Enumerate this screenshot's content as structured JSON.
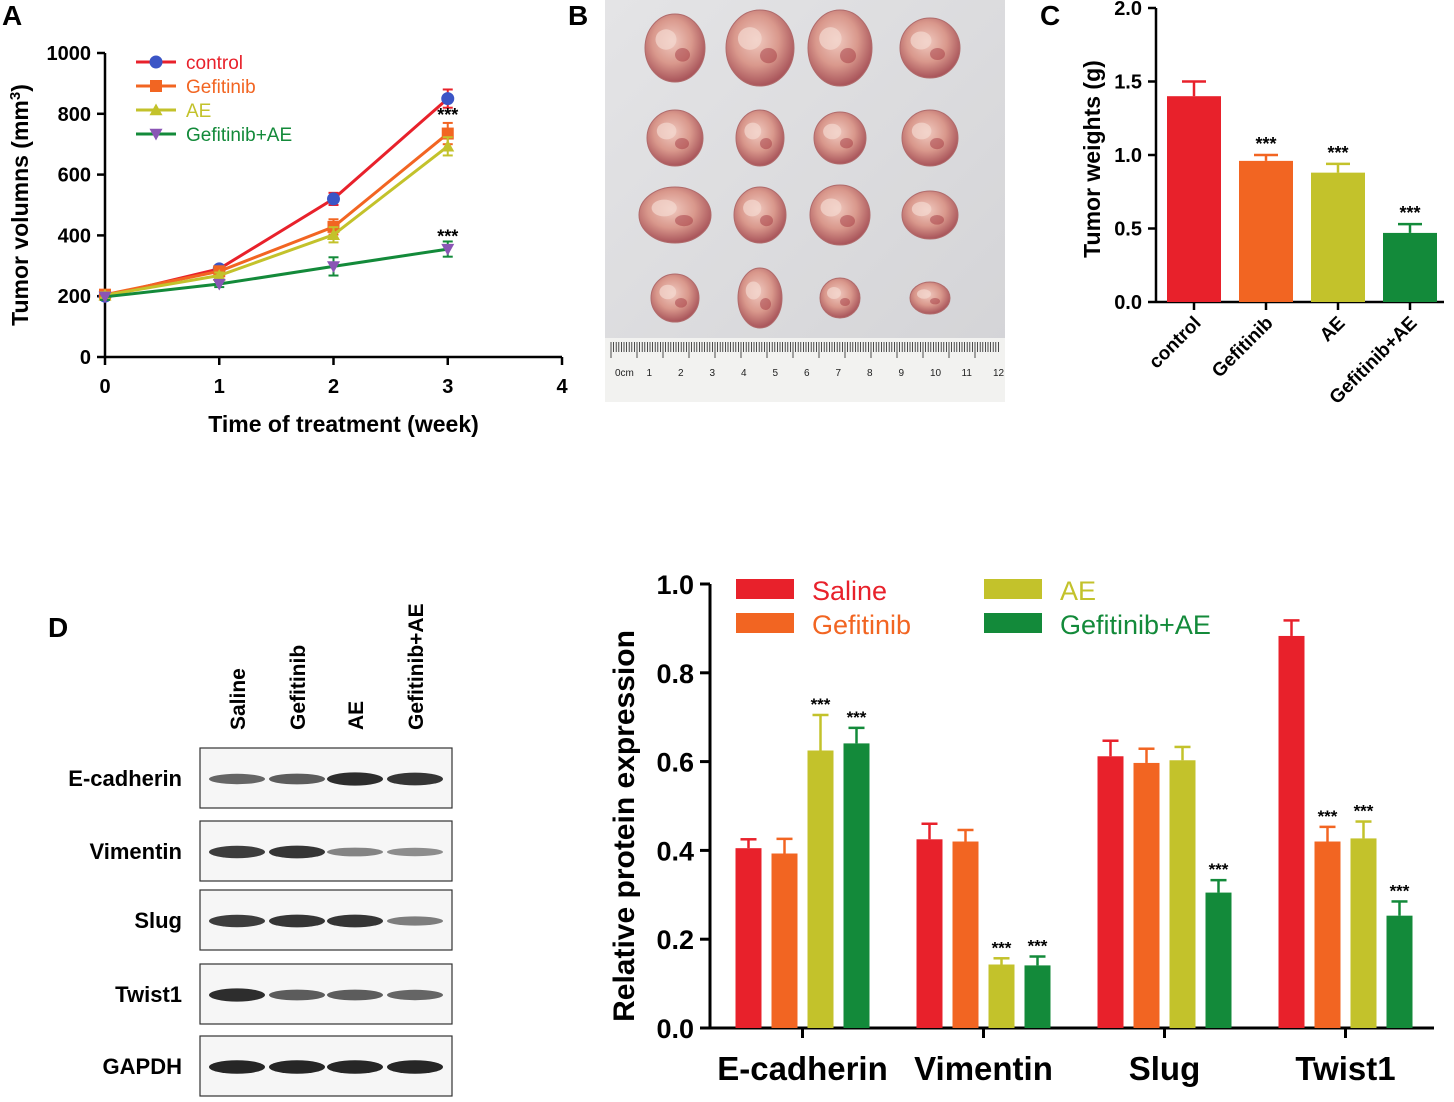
{
  "panels": {
    "a": "A",
    "b": "B",
    "c": "C",
    "d": "D"
  },
  "colors": {
    "red": "#e8212b",
    "orange": "#f26522",
    "olive": "#c3c22b",
    "green": "#138a3a",
    "blue": "#3b55c6",
    "purple": "#8a55b5"
  },
  "photo": {
    "ruler_labels": [
      "0cm",
      "1",
      "2",
      "3",
      "4",
      "5",
      "6",
      "7",
      "8",
      "9",
      "10",
      "11",
      "12"
    ]
  },
  "blot": {
    "lanes": [
      "Saline",
      "Gefitinib",
      "AE",
      "Gefitinib+AE"
    ],
    "proteins": [
      "E-cadherin",
      "Vimentin",
      "Slug",
      "Twist1",
      "GAPDH"
    ]
  },
  "chart_data": [
    {
      "id": "A",
      "type": "line",
      "title": "",
      "xlabel": "Time of treatment (week)",
      "ylabel_main": "Tumor volumns (mm",
      "ylabel_sup": "3",
      "ylabel_close": ")",
      "xlim": [
        0,
        4
      ],
      "ylim": [
        0,
        1000
      ],
      "xticks": [
        "0",
        "1",
        "2",
        "3",
        "4"
      ],
      "yticks": [
        "0",
        "200",
        "400",
        "600",
        "800",
        "1000"
      ],
      "x": [
        0,
        1,
        2,
        3
      ],
      "series": [
        {
          "name": "control",
          "values": [
            200,
            290,
            520,
            850
          ],
          "errors": [
            10,
            10,
            20,
            30
          ],
          "marker": "circle"
        },
        {
          "name": "Gefitinib",
          "values": [
            205,
            282,
            428,
            735
          ],
          "errors": [
            10,
            10,
            25,
            35
          ],
          "marker": "square"
        },
        {
          "name": "AE",
          "values": [
            203,
            268,
            402,
            693
          ],
          "errors": [
            10,
            10,
            25,
            30
          ],
          "marker": "triangle-up"
        },
        {
          "name": "Gefitinib+AE",
          "values": [
            198,
            240,
            298,
            355
          ],
          "errors": [
            10,
            10,
            30,
            25
          ],
          "marker": "triangle-down"
        }
      ],
      "annotations": [
        {
          "text": "***",
          "x": 3,
          "y": 790
        },
        {
          "text": "***",
          "x": 3,
          "y": 390
        }
      ],
      "legend": "top-left"
    },
    {
      "id": "C",
      "type": "bar",
      "title": "",
      "ylabel": "Tumor weights (g)",
      "ylim": [
        0,
        2.0
      ],
      "yticks": [
        "0.0",
        "0.5",
        "1.0",
        "1.5",
        "2.0"
      ],
      "categories": [
        "control",
        "Gefitinib",
        "AE",
        "Gefitinib+AE"
      ],
      "values": [
        1.4,
        0.96,
        0.88,
        0.47
      ],
      "errors": [
        0.1,
        0.04,
        0.06,
        0.06
      ],
      "significance": [
        "",
        "***",
        "***",
        "***"
      ]
    },
    {
      "id": "D",
      "type": "bar",
      "title": "",
      "ylabel": "Relative protein expression",
      "ylim": [
        0,
        1.0
      ],
      "yticks": [
        "0.0",
        "0.2",
        "0.4",
        "0.6",
        "0.8",
        "1.0"
      ],
      "categories": [
        "E-cadherin",
        "Vimentin",
        "Slug",
        "Twist1"
      ],
      "series": [
        {
          "name": "Saline",
          "values": [
            0.405,
            0.425,
            0.612,
            0.883
          ],
          "errors": [
            0.02,
            0.035,
            0.035,
            0.035
          ],
          "significance": [
            "",
            "",
            "",
            ""
          ]
        },
        {
          "name": "Gefitinib",
          "values": [
            0.393,
            0.42,
            0.597,
            0.42
          ],
          "errors": [
            0.033,
            0.026,
            0.032,
            0.033
          ],
          "significance": [
            "",
            "",
            "",
            "***"
          ]
        },
        {
          "name": "AE",
          "values": [
            0.625,
            0.143,
            0.603,
            0.427
          ],
          "errors": [
            0.08,
            0.014,
            0.03,
            0.038
          ],
          "significance": [
            "***",
            "***",
            "",
            "***"
          ]
        },
        {
          "name": "Gefitinib+AE",
          "values": [
            0.641,
            0.141,
            0.305,
            0.253
          ],
          "errors": [
            0.035,
            0.02,
            0.028,
            0.032
          ],
          "significance": [
            "***",
            "***",
            "***",
            "***"
          ]
        }
      ],
      "legend": "top"
    }
  ]
}
